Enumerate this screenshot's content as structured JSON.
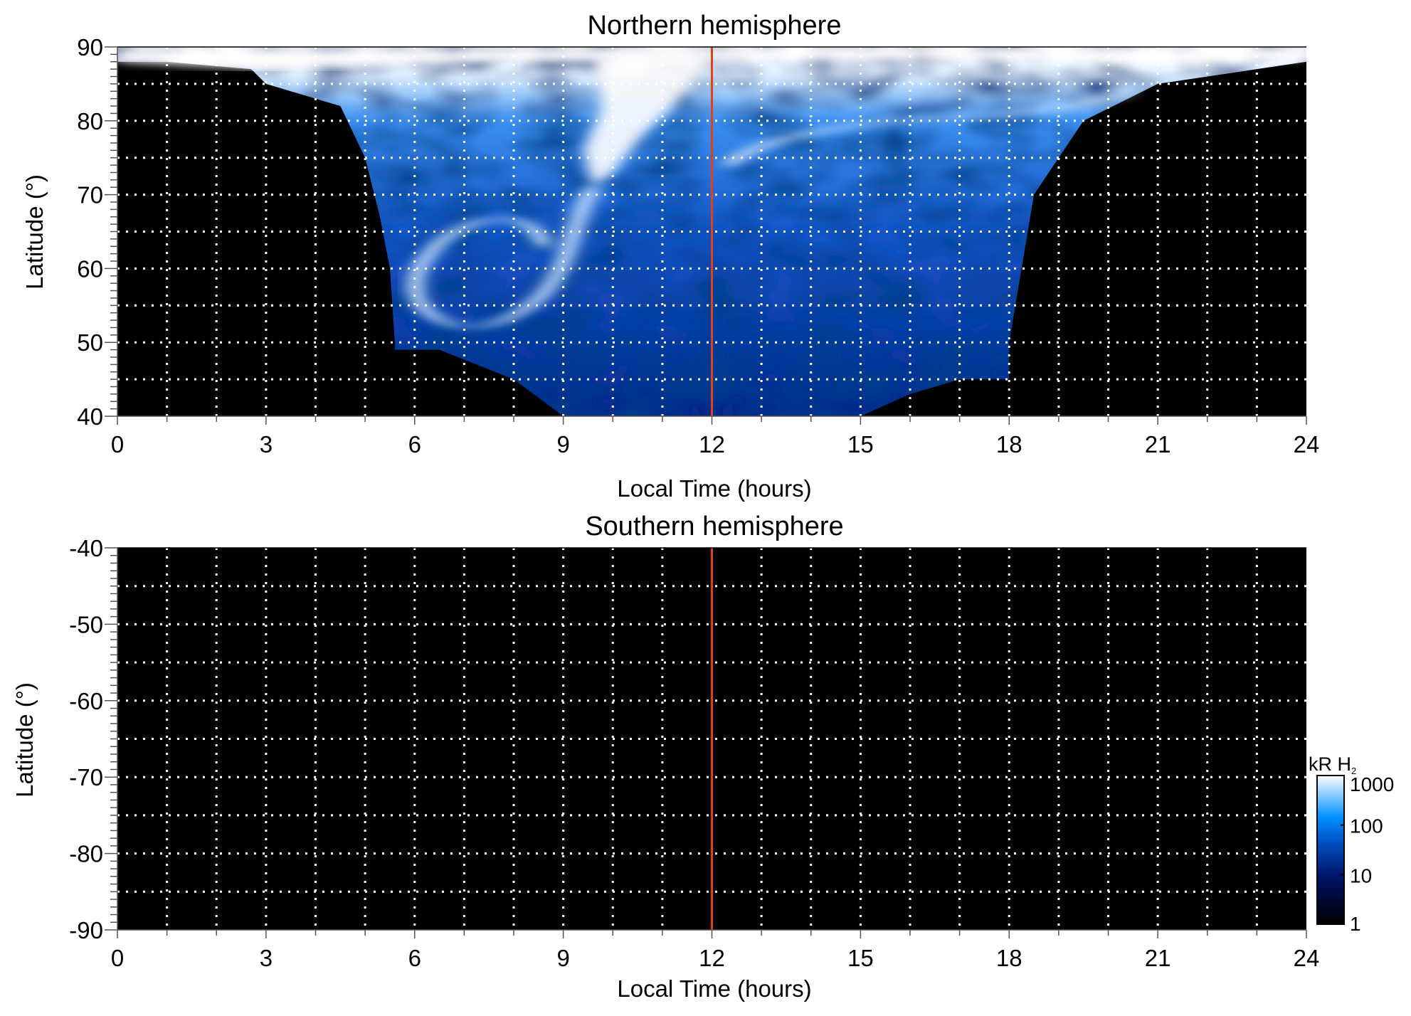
{
  "chart_data": [
    {
      "type": "heatmap",
      "title": "Northern hemisphere",
      "xlabel": "Local Time (hours)",
      "ylabel": "Latitude (°)",
      "xlim": [
        0,
        24
      ],
      "ylim": [
        40,
        90
      ],
      "xticks": [
        "0",
        "3",
        "6",
        "9",
        "12",
        "15",
        "18",
        "21",
        "24"
      ],
      "yticks": [
        "90",
        "80",
        "70",
        "60",
        "50",
        "40"
      ],
      "grid": true,
      "marker_line": {
        "x": 12,
        "color": "#e0401a"
      },
      "description_of_content": "auroral emission present between ~3 and ~21 h LT, brightest near 9-12 h and pole"
    },
    {
      "type": "heatmap",
      "title": "Southern hemisphere",
      "xlabel": "Local Time (hours)",
      "ylabel": "Latitude (°)",
      "xlim": [
        0,
        24
      ],
      "ylim": [
        -90,
        -40
      ],
      "xticks": [
        "0",
        "3",
        "6",
        "9",
        "12",
        "15",
        "18",
        "21",
        "24"
      ],
      "yticks": [
        "-40",
        "-50",
        "-60",
        "-70",
        "-80",
        "-90"
      ],
      "grid": true,
      "marker_line": {
        "x": 12,
        "color": "#e0401a"
      }
    }
  ],
  "colorbar": {
    "label": "kR H",
    "label_sub": "2",
    "scale": "log",
    "range": [
      1,
      1000
    ],
    "ticks": [
      "1000",
      "100",
      "10",
      "1"
    ],
    "colors": [
      "#000000",
      "#001060",
      "#0050c0",
      "#0090ff",
      "#ffffff"
    ]
  }
}
